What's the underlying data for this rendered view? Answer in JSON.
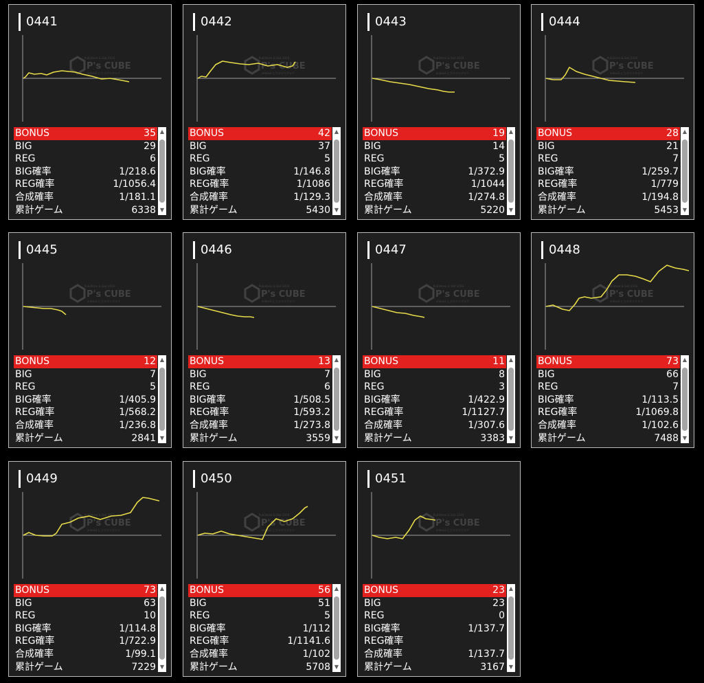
{
  "labels": {
    "bonus": "BONUS",
    "big": "BIG",
    "reg": "REG",
    "big_rate": "BIG確率",
    "reg_rate": "REG確率",
    "combined_rate": "合成確率",
    "total_games": "累計ゲーム"
  },
  "watermark": {
    "brand": "P's CUBE",
    "line_top": "Pub3dsee & Slot 2016",
    "line_bottom": "anbox2 にカラマリグラフ"
  },
  "colors": {
    "line": "#e8dc4a",
    "bonus_bg": "#e3211e",
    "card_bg": "#1f1f1f",
    "axis": "#a0a0a0"
  },
  "scroll_icons": {
    "up": "▲",
    "down": "▼"
  },
  "machines": [
    {
      "id": "0441",
      "bonus": "35",
      "big": "29",
      "reg": "6",
      "big_rate": "1/218.6",
      "reg_rate": "1/1056.4",
      "combined_rate": "1/181.1",
      "total_games": "6338",
      "graph": [
        [
          0,
          0
        ],
        [
          3,
          -2
        ],
        [
          8,
          -8
        ],
        [
          16,
          -6
        ],
        [
          26,
          -7
        ],
        [
          34,
          -5
        ],
        [
          44,
          -9
        ],
        [
          56,
          -11
        ],
        [
          66,
          -10
        ],
        [
          76,
          -9
        ],
        [
          86,
          -6
        ],
        [
          100,
          -3
        ],
        [
          114,
          1
        ],
        [
          126,
          0
        ],
        [
          138,
          2
        ],
        [
          154,
          5
        ]
      ]
    },
    {
      "id": "0442",
      "bonus": "42",
      "big": "37",
      "reg": "5",
      "big_rate": "1/146.8",
      "reg_rate": "1/1086",
      "combined_rate": "1/129.3",
      "total_games": "5430",
      "graph": [
        [
          0,
          0
        ],
        [
          5,
          -3
        ],
        [
          12,
          -2
        ],
        [
          18,
          -10
        ],
        [
          26,
          -20
        ],
        [
          36,
          -25
        ],
        [
          48,
          -23
        ],
        [
          62,
          -21
        ],
        [
          74,
          -20
        ],
        [
          88,
          -22
        ],
        [
          102,
          -18
        ],
        [
          116,
          -20
        ],
        [
          130,
          -16
        ],
        [
          138,
          -18
        ],
        [
          142,
          -24
        ]
      ]
    },
    {
      "id": "0443",
      "bonus": "19",
      "big": "14",
      "reg": "5",
      "big_rate": "1/372.9",
      "reg_rate": "1/1044",
      "combined_rate": "1/274.8",
      "total_games": "5220",
      "graph": [
        [
          0,
          0
        ],
        [
          12,
          2
        ],
        [
          26,
          5
        ],
        [
          40,
          7
        ],
        [
          54,
          9
        ],
        [
          68,
          12
        ],
        [
          82,
          15
        ],
        [
          96,
          17
        ],
        [
          104,
          19
        ],
        [
          112,
          20
        ],
        [
          120,
          20
        ]
      ]
    },
    {
      "id": "0444",
      "bonus": "28",
      "big": "21",
      "reg": "7",
      "big_rate": "1/259.7",
      "reg_rate": "1/779",
      "combined_rate": "1/194.8",
      "total_games": "5453",
      "graph": [
        [
          0,
          0
        ],
        [
          10,
          2
        ],
        [
          22,
          2
        ],
        [
          28,
          -5
        ],
        [
          34,
          -16
        ],
        [
          44,
          -10
        ],
        [
          56,
          -6
        ],
        [
          68,
          -3
        ],
        [
          80,
          0
        ],
        [
          92,
          3
        ],
        [
          104,
          4
        ],
        [
          116,
          5
        ],
        [
          130,
          6
        ]
      ]
    },
    {
      "id": "0445",
      "bonus": "12",
      "big": "7",
      "reg": "5",
      "big_rate": "1/405.9",
      "reg_rate": "1/568.2",
      "combined_rate": "1/236.8",
      "total_games": "2841",
      "graph": [
        [
          0,
          0
        ],
        [
          10,
          1
        ],
        [
          20,
          2
        ],
        [
          30,
          3
        ],
        [
          40,
          3
        ],
        [
          50,
          5
        ],
        [
          56,
          7
        ],
        [
          62,
          12
        ]
      ]
    },
    {
      "id": "0446",
      "bonus": "13",
      "big": "7",
      "reg": "6",
      "big_rate": "1/508.5",
      "reg_rate": "1/593.2",
      "combined_rate": "1/273.8",
      "total_games": "3559",
      "graph": [
        [
          0,
          0
        ],
        [
          12,
          3
        ],
        [
          24,
          6
        ],
        [
          36,
          9
        ],
        [
          48,
          12
        ],
        [
          58,
          14
        ],
        [
          68,
          15
        ],
        [
          76,
          15
        ],
        [
          82,
          16
        ]
      ]
    },
    {
      "id": "0447",
      "bonus": "11",
      "big": "8",
      "reg": "3",
      "big_rate": "1/422.9",
      "reg_rate": "1/1127.7",
      "combined_rate": "1/307.6",
      "total_games": "3383",
      "graph": [
        [
          0,
          0
        ],
        [
          12,
          3
        ],
        [
          24,
          6
        ],
        [
          36,
          9
        ],
        [
          48,
          10
        ],
        [
          60,
          13
        ],
        [
          72,
          15
        ],
        [
          76,
          16
        ]
      ]
    },
    {
      "id": "0448",
      "bonus": "73",
      "big": "66",
      "reg": "7",
      "big_rate": "1/113.5",
      "reg_rate": "1/1069.8",
      "combined_rate": "1/102.6",
      "total_games": "7488",
      "graph": [
        [
          0,
          0
        ],
        [
          10,
          -2
        ],
        [
          24,
          4
        ],
        [
          34,
          6
        ],
        [
          42,
          -3
        ],
        [
          48,
          -12
        ],
        [
          56,
          -14
        ],
        [
          66,
          -12
        ],
        [
          80,
          -14
        ],
        [
          88,
          -24
        ],
        [
          96,
          -37
        ],
        [
          106,
          -46
        ],
        [
          118,
          -46
        ],
        [
          130,
          -44
        ],
        [
          142,
          -40
        ],
        [
          152,
          -36
        ],
        [
          164,
          -51
        ],
        [
          176,
          -60
        ],
        [
          188,
          -56
        ],
        [
          200,
          -54
        ],
        [
          208,
          -52
        ]
      ]
    },
    {
      "id": "0449",
      "bonus": "73",
      "big": "63",
      "reg": "10",
      "big_rate": "1/114.8",
      "reg_rate": "1/722.9",
      "combined_rate": "1/99.1",
      "total_games": "7229",
      "graph": [
        [
          0,
          0
        ],
        [
          8,
          -4
        ],
        [
          18,
          0
        ],
        [
          30,
          1
        ],
        [
          42,
          1
        ],
        [
          48,
          -3
        ],
        [
          56,
          -16
        ],
        [
          68,
          -19
        ],
        [
          80,
          -25
        ],
        [
          96,
          -28
        ],
        [
          112,
          -23
        ],
        [
          128,
          -28
        ],
        [
          142,
          -29
        ],
        [
          156,
          -33
        ],
        [
          166,
          -48
        ],
        [
          174,
          -55
        ],
        [
          182,
          -54
        ],
        [
          190,
          -52
        ],
        [
          198,
          -50
        ]
      ]
    },
    {
      "id": "0450",
      "bonus": "56",
      "big": "51",
      "reg": "5",
      "big_rate": "1/112",
      "reg_rate": "1/1141.6",
      "combined_rate": "1/102",
      "total_games": "5708",
      "graph": [
        [
          0,
          0
        ],
        [
          10,
          -3
        ],
        [
          22,
          -2
        ],
        [
          34,
          -6
        ],
        [
          46,
          -2
        ],
        [
          58,
          0
        ],
        [
          70,
          2
        ],
        [
          82,
          4
        ],
        [
          94,
          6
        ],
        [
          102,
          -12
        ],
        [
          114,
          -24
        ],
        [
          126,
          -20
        ],
        [
          138,
          -24
        ],
        [
          148,
          -32
        ],
        [
          156,
          -40
        ],
        [
          160,
          -42
        ]
      ]
    },
    {
      "id": "0451",
      "bonus": "23",
      "big": "23",
      "reg": "0",
      "big_rate": "1/137.7",
      "reg_rate": "",
      "combined_rate": "1/137.7",
      "total_games": "3167",
      "graph": [
        [
          0,
          0
        ],
        [
          10,
          3
        ],
        [
          22,
          5
        ],
        [
          34,
          3
        ],
        [
          44,
          5
        ],
        [
          54,
          -8
        ],
        [
          62,
          -22
        ],
        [
          70,
          -28
        ],
        [
          78,
          -24
        ],
        [
          86,
          -23
        ],
        [
          92,
          -22
        ]
      ]
    }
  ]
}
